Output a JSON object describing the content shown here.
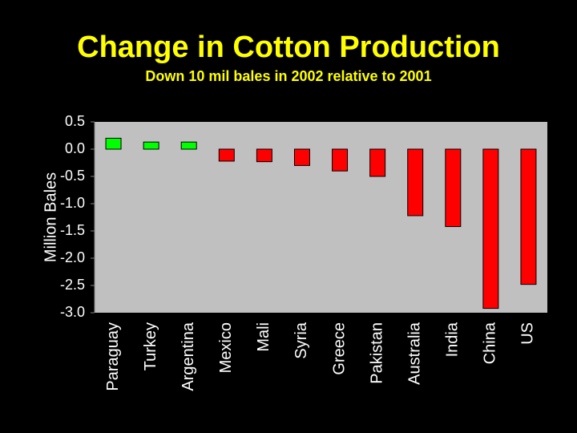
{
  "colors": {
    "background": "#000000",
    "title": "#FFFF00",
    "plot_area": "#C0C0C0",
    "positive_bar": "#00FF00",
    "negative_bar": "#FF0000",
    "text": "#FFFFFF"
  },
  "chart_data": {
    "type": "bar",
    "title": "Change in Cotton Production",
    "subtitle": "Down 10 mil bales in 2002 relative to 2001",
    "xlabel": "",
    "ylabel": "Million Bales",
    "ylim": [
      -3.0,
      0.5
    ],
    "yticks": [
      "0.5",
      "0.0",
      "-0.5",
      "-1.0",
      "-1.5",
      "-2.0",
      "-2.5",
      "-3.0"
    ],
    "grid": false,
    "legend": "none",
    "categories": [
      "Paraguay",
      "Turkey",
      "Argentina",
      "Mexico",
      "Mali",
      "Syria",
      "Greece",
      "Pakistan",
      "Australia",
      "India",
      "China",
      "US"
    ],
    "values": [
      0.2,
      0.13,
      0.13,
      -0.22,
      -0.23,
      -0.3,
      -0.4,
      -0.5,
      -1.22,
      -1.42,
      -2.92,
      -2.48
    ]
  }
}
